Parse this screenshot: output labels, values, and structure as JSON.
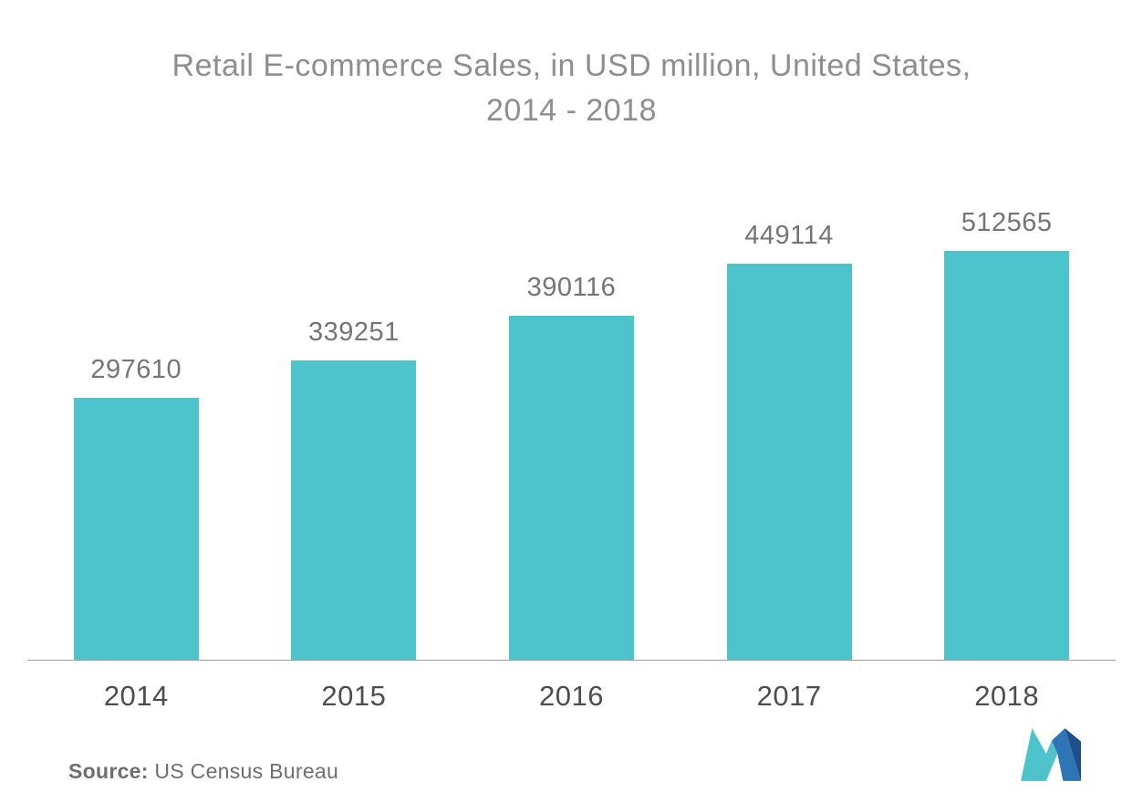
{
  "chart_data": {
    "type": "bar",
    "title": "Retail E-commerce Sales, in USD million, United States, 2014 - 2018",
    "title_line1": "Retail E-commerce Sales, in USD million, United States,",
    "title_line2": "2014 - 2018",
    "categories": [
      "2014",
      "2015",
      "2016",
      "2017",
      "2018"
    ],
    "values": [
      297610,
      339251,
      390116,
      449114,
      512565
    ],
    "value_labels": [
      "297610",
      "339251",
      "390116",
      "449114",
      "512565"
    ],
    "ylim": [
      0,
      512565
    ],
    "xlabel": "",
    "ylabel": "",
    "grid": false,
    "legend_position": "none",
    "bar_color": "#4dc4cc"
  },
  "source": {
    "label": "Source:",
    "text": " US Census Bureau"
  },
  "logo": {
    "name": "mordor-intelligence-logo",
    "teal": "#4ec3cb",
    "blue": "#2e75b6",
    "dark_blue": "#1f4e8c"
  }
}
